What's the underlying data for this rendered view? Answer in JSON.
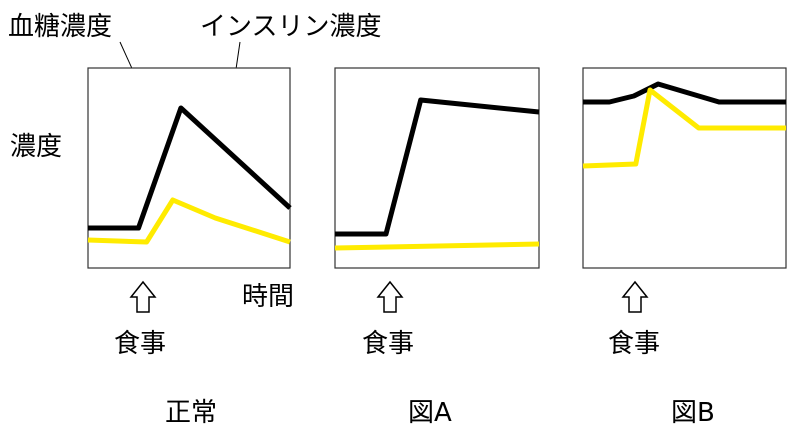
{
  "labels": {
    "glucose": "血糖濃度",
    "insulin": "インスリン濃度",
    "concentration": "濃度",
    "time": "時間"
  },
  "panels": [
    {
      "id": "normal",
      "caption": "正常",
      "meal": "食事",
      "glucose": [
        [
          0,
          0.8
        ],
        [
          0.25,
          0.8
        ],
        [
          0.46,
          0.2
        ],
        [
          1,
          0.7
        ]
      ],
      "insulin": [
        [
          0,
          0.86
        ],
        [
          0.29,
          0.87
        ],
        [
          0.42,
          0.66
        ],
        [
          0.63,
          0.75
        ],
        [
          1,
          0.87
        ]
      ]
    },
    {
      "id": "A",
      "caption": "図A",
      "meal": "食事",
      "glucose": [
        [
          0,
          0.83
        ],
        [
          0.25,
          0.83
        ],
        [
          0.42,
          0.16
        ],
        [
          1,
          0.22
        ]
      ],
      "insulin": [
        [
          0,
          0.9
        ],
        [
          1,
          0.88
        ]
      ]
    },
    {
      "id": "B",
      "caption": "図B",
      "meal": "食事",
      "glucose": [
        [
          0,
          0.17
        ],
        [
          0.13,
          0.17
        ],
        [
          0.25,
          0.14
        ],
        [
          0.37,
          0.08
        ],
        [
          0.67,
          0.17
        ],
        [
          1,
          0.17
        ]
      ],
      "insulin": [
        [
          0,
          0.49
        ],
        [
          0.26,
          0.48
        ],
        [
          0.33,
          0.11
        ],
        [
          0.57,
          0.3
        ],
        [
          1,
          0.3
        ]
      ]
    }
  ]
}
